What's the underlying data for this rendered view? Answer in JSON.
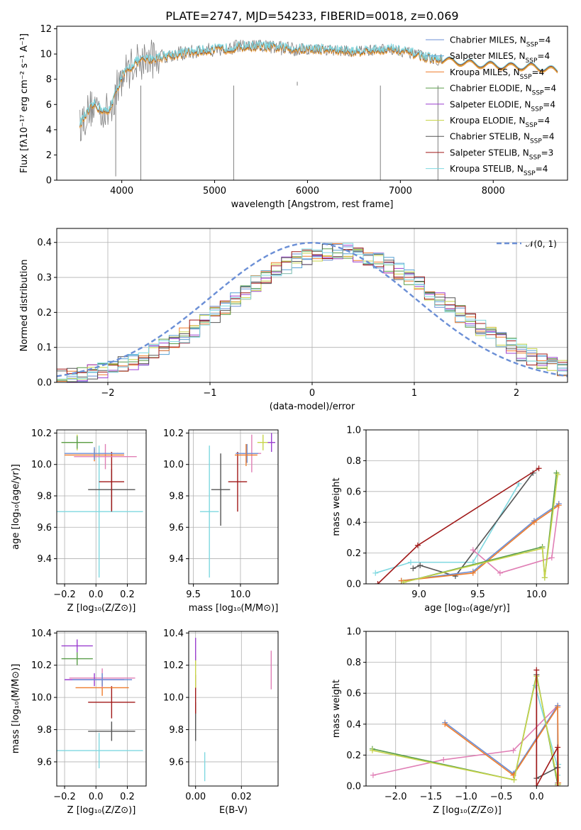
{
  "title": "PLATE=2747, MJD=54233, FIBERID=0018, z=0.069",
  "colors": {
    "chabrier_miles": "#6b8fd6",
    "salpeter_miles": "#56a0d3",
    "kroupa_miles": "#ef7d2d",
    "chabrier_elodie": "#5a9e4a",
    "salpeter_elodie": "#9b3fd0",
    "kroupa_elodie": "#c8d44a",
    "chabrier_stelib": "#555555",
    "salpeter_stelib": "#a01818",
    "kroupa_stelib": "#7fd8e0",
    "pink": "#e07fb5",
    "data": "#808080",
    "normal": "#6b8fd6"
  },
  "chart_data": [
    {
      "id": "spectrum",
      "type": "line",
      "xlabel": "wavelength [Angstrom, rest frame]",
      "ylabel": "Flux [fλ10⁻¹⁷ erg cm⁻² s⁻¹ A⁻¹]",
      "xlim": [
        3300,
        8800
      ],
      "ylim": [
        0,
        12.2
      ],
      "xticks": [
        "4000",
        "5000",
        "6000",
        "7000",
        "8000"
      ],
      "yticks": [
        "0",
        "2",
        "4",
        "6",
        "8",
        "10",
        "12"
      ],
      "legend_position": "right",
      "legend": [
        {
          "label": "Chabrier MILES, N",
          "sub": "SSP",
          "tail": "=4",
          "color": "chabrier_miles"
        },
        {
          "label": "Salpeter MILES, N",
          "sub": "SSP",
          "tail": "=4",
          "color": "salpeter_miles"
        },
        {
          "label": "Kroupa MILES, N",
          "sub": "SSP",
          "tail": "=4",
          "color": "kroupa_miles"
        },
        {
          "label": "Chabrier ELODIE, N",
          "sub": "SSP",
          "tail": "=4",
          "color": "chabrier_elodie"
        },
        {
          "label": "Salpeter ELODIE, N",
          "sub": "SSP",
          "tail": "=4",
          "color": "salpeter_elodie"
        },
        {
          "label": "Kroupa ELODIE, N",
          "sub": "SSP",
          "tail": "=4",
          "color": "kroupa_elodie"
        },
        {
          "label": "Chabrier STELIB, N",
          "sub": "SSP",
          "tail": "=4",
          "color": "chabrier_stelib"
        },
        {
          "label": "Salpeter STELIB, N",
          "sub": "SSP",
          "tail": "=3",
          "color": "salpeter_stelib"
        },
        {
          "label": "Kroupa STELIB, N",
          "sub": "SSP",
          "tail": "=4",
          "color": "kroupa_stelib"
        }
      ],
      "continuum": {
        "x": [
          3550,
          3700,
          3850,
          4000,
          4150,
          4300,
          4500,
          4700,
          4900,
          5100,
          5300,
          5500,
          5700,
          5900,
          6100,
          6300,
          6500,
          6700,
          6900,
          7100,
          7300,
          7450
        ],
        "y": [
          4.5,
          6.0,
          5.3,
          8.2,
          9.4,
          9.6,
          9.9,
          10.1,
          10.3,
          10.4,
          10.6,
          10.6,
          10.5,
          10.4,
          10.4,
          10.3,
          10.2,
          10.3,
          10.4,
          10.1,
          9.7,
          9.5
        ]
      },
      "continuum_red": {
        "x": [
          7450,
          7600,
          7800,
          8000,
          8200,
          8400,
          8600,
          8700
        ],
        "y": [
          9.5,
          9.4,
          9.2,
          9.1,
          9.0,
          9.0,
          8.8,
          8.6
        ]
      },
      "absorption_lines": [
        {
          "x": 3935,
          "y": 0.3
        },
        {
          "x": 4205,
          "y": 0.0
        },
        {
          "x": 5205,
          "y": 0.0
        },
        {
          "x": 5890,
          "y": 7.8
        },
        {
          "x": 6785,
          "y": 0.0
        },
        {
          "x": 7405,
          "y": 0.0
        }
      ]
    },
    {
      "id": "residuals",
      "type": "line",
      "xlabel": "(data-model)/error",
      "ylabel": "Normed distribution",
      "xlim": [
        -2.5,
        2.5
      ],
      "ylim": [
        0,
        0.44
      ],
      "xticks": [
        "−2",
        "−1",
        "0",
        "1",
        "2"
      ],
      "yticks": [
        "0.0",
        "0.1",
        "0.2",
        "0.3",
        "0.4"
      ],
      "grid": true,
      "legend_position": "top-right",
      "normal_label": "𝒩(0, 1)",
      "bin_width": 0.1
    },
    {
      "id": "age_vs_Z",
      "type": "scatter",
      "xlabel": "Z [log₁₀(Z/Z⊙)]",
      "ylabel": "age  [log₁₀(age/yr)]",
      "xlim": [
        -0.25,
        0.32
      ],
      "ylim": [
        9.24,
        10.22
      ],
      "xticks": [
        "−0.2",
        "0.0",
        "0.2"
      ],
      "yticks": [
        "9.4",
        "9.6",
        "9.8",
        "10.0",
        "10.2"
      ],
      "grid": true,
      "points": [
        {
          "x": 0.02,
          "y": 9.7,
          "xerr": 0.28,
          "yerr": 0.42,
          "color": "kroupa_stelib"
        },
        {
          "x": 0.1,
          "y": 9.84,
          "xerr": 0.15,
          "yerr": 0.13,
          "color": "chabrier_stelib"
        },
        {
          "x": 0.1,
          "y": 9.89,
          "xerr": 0.08,
          "yerr": 0.19,
          "color": "salpeter_stelib"
        },
        {
          "x": 0.06,
          "y": 10.05,
          "xerr": 0.2,
          "yerr": 0.08,
          "color": "pink"
        },
        {
          "x": -0.01,
          "y": 10.06,
          "xerr": 0.19,
          "yerr": 0.04,
          "color": "kroupa_miles"
        },
        {
          "x": -0.01,
          "y": 10.07,
          "xerr": 0.19,
          "yerr": 0.04,
          "color": "chabrier_miles"
        },
        {
          "x": -0.12,
          "y": 10.14,
          "xerr": 0.1,
          "yerr": 0.05,
          "color": "kroupa_elodie"
        },
        {
          "x": -0.12,
          "y": 10.14,
          "xerr": 0.1,
          "yerr": 0.04,
          "color": "chabrier_elodie"
        }
      ]
    },
    {
      "id": "age_vs_mass",
      "type": "scatter",
      "xlabel": "mass [log₁₀(M/M⊙)]",
      "ylabel": "",
      "xlim": [
        9.45,
        10.4
      ],
      "ylim": [
        9.24,
        10.22
      ],
      "xticks": [
        "9.5",
        "10.0"
      ],
      "yticks": [
        "9.4",
        "9.6",
        "9.8",
        "10.0",
        "10.2"
      ],
      "grid": true,
      "points": [
        {
          "x": 9.67,
          "y": 9.7,
          "xerr": 0.1,
          "yerr": 0.42,
          "color": "kroupa_stelib"
        },
        {
          "x": 9.79,
          "y": 9.84,
          "xerr": 0.1,
          "yerr": 0.23,
          "color": "chabrier_stelib"
        },
        {
          "x": 9.97,
          "y": 9.89,
          "xerr": 0.1,
          "yerr": 0.19,
          "color": "salpeter_stelib"
        },
        {
          "x": 10.12,
          "y": 10.07,
          "xerr": 0.1,
          "yerr": 0.12,
          "color": "pink"
        },
        {
          "x": 10.07,
          "y": 10.07,
          "xerr": 0.12,
          "yerr": 0.06,
          "color": "chabrier_miles"
        },
        {
          "x": 10.06,
          "y": 10.06,
          "xerr": 0.12,
          "yerr": 0.07,
          "color": "kroupa_miles"
        },
        {
          "x": 10.24,
          "y": 10.14,
          "xerr": 0.06,
          "yerr": 0.05,
          "color": "kroupa_elodie"
        },
        {
          "x": 10.33,
          "y": 10.14,
          "xerr": 0.04,
          "yerr": 0.06,
          "color": "salpeter_elodie"
        }
      ]
    },
    {
      "id": "massweight_vs_age",
      "type": "line",
      "xlabel": "age  [log₁₀(age/yr)]",
      "ylabel": "mass weight",
      "xlim": [
        8.55,
        10.27
      ],
      "ylim": [
        0,
        1.0
      ],
      "xticks": [
        "9.0",
        "9.5",
        "10.0"
      ],
      "yticks": [
        "0.0",
        "0.2",
        "0.4",
        "0.6",
        "0.8",
        "1.0"
      ],
      "grid": true,
      "series": [
        {
          "color": "kroupa_stelib",
          "x": [
            8.63,
            8.93,
            9.46,
            9.85
          ],
          "y": [
            0.07,
            0.14,
            0.14,
            0.65
          ]
        },
        {
          "color": "chabrier_stelib",
          "x": [
            8.95,
            9.01,
            9.31,
            9.97
          ],
          "y": [
            0.1,
            0.12,
            0.05,
            0.72
          ]
        },
        {
          "color": "salpeter_stelib",
          "x": [
            8.65,
            8.99,
            10.02
          ],
          "y": [
            0.0,
            0.25,
            0.75
          ]
        },
        {
          "color": "pink",
          "x": [
            9.46,
            9.69,
            10.13,
            10.19
          ],
          "y": [
            0.22,
            0.07,
            0.17,
            0.52
          ]
        },
        {
          "color": "chabrier_miles",
          "x": [
            8.85,
            9.46,
            9.98,
            10.19
          ],
          "y": [
            0.02,
            0.08,
            0.41,
            0.52
          ]
        },
        {
          "color": "kroupa_miles",
          "x": [
            8.85,
            9.46,
            9.98,
            10.19
          ],
          "y": [
            0.02,
            0.07,
            0.4,
            0.51
          ]
        },
        {
          "color": "chabrier_elodie",
          "x": [
            8.87,
            10.05,
            10.07,
            10.17
          ],
          "y": [
            0.01,
            0.24,
            0.04,
            0.72
          ]
        },
        {
          "color": "kroupa_elodie",
          "x": [
            8.87,
            10.05,
            10.07,
            10.18
          ],
          "y": [
            0.01,
            0.23,
            0.04,
            0.71
          ]
        }
      ]
    },
    {
      "id": "mass_vs_Z",
      "type": "scatter",
      "xlabel": "Z [log₁₀(Z/Z⊙)]",
      "ylabel": "mass [log₁₀(M/M⊙)]",
      "xlim": [
        -0.25,
        0.32
      ],
      "ylim": [
        9.45,
        10.41
      ],
      "xticks": [
        "−0.2",
        "0.0",
        "0.2"
      ],
      "yticks": [
        "9.6",
        "9.8",
        "10.0",
        "10.2",
        "10.4"
      ],
      "grid": true,
      "points": [
        {
          "x": 0.02,
          "y": 9.67,
          "xerr": 0.28,
          "yerr": 0.11,
          "color": "kroupa_stelib"
        },
        {
          "x": 0.1,
          "y": 9.79,
          "xerr": 0.15,
          "yerr": 0.06,
          "color": "chabrier_stelib"
        },
        {
          "x": 0.1,
          "y": 9.97,
          "xerr": 0.15,
          "yerr": 0.1,
          "color": "salpeter_stelib"
        },
        {
          "x": 0.04,
          "y": 10.06,
          "xerr": 0.17,
          "yerr": 0.05,
          "color": "kroupa_miles"
        },
        {
          "x": 0.04,
          "y": 10.12,
          "xerr": 0.21,
          "yerr": 0.06,
          "color": "pink"
        },
        {
          "x": -0.01,
          "y": 10.11,
          "xerr": 0.19,
          "yerr": 0.04,
          "color": "salpeter_elodie"
        },
        {
          "x": -0.12,
          "y": 10.24,
          "xerr": 0.1,
          "yerr": 0.04,
          "color": "chabrier_elodie"
        },
        {
          "x": -0.12,
          "y": 10.32,
          "xerr": 0.1,
          "yerr": 0.04,
          "color": "salpeter_elodie"
        },
        {
          "x": 0.04,
          "y": 10.11,
          "xerr": 0.19,
          "yerr": 0.04,
          "color": "chabrier_miles"
        }
      ]
    },
    {
      "id": "mass_vs_ebv",
      "type": "scatter",
      "xlabel": "E(B-V)",
      "ylabel": "",
      "xlim": [
        -0.003,
        0.036
      ],
      "ylim": [
        9.45,
        10.41
      ],
      "xticks": [
        "0.00",
        "0.02"
      ],
      "yticks": [
        "9.6",
        "9.8",
        "10.0",
        "10.2",
        "10.4"
      ],
      "grid": true,
      "points": [
        {
          "x": 0.004,
          "y": 9.57,
          "xerr": 0,
          "yerr": 0.09,
          "color": "kroupa_stelib"
        },
        {
          "x": 0.0,
          "y": 9.85,
          "xerr": 0,
          "yerr": 0.12,
          "color": "chabrier_stelib"
        },
        {
          "x": 0.0,
          "y": 10.02,
          "xerr": 0,
          "yerr": 0.12,
          "color": "salpeter_stelib"
        },
        {
          "x": 0.033,
          "y": 10.17,
          "xerr": 0,
          "yerr": 0.12,
          "color": "pink"
        },
        {
          "x": 0.0,
          "y": 10.16,
          "xerr": 0,
          "yerr": 0.1,
          "color": "kroupa_elodie"
        },
        {
          "x": 0.0,
          "y": 10.3,
          "xerr": 0,
          "yerr": 0.07,
          "color": "salpeter_elodie"
        }
      ]
    },
    {
      "id": "massweight_vs_Z",
      "type": "line",
      "xlabel": "Z [log₁₀(Z/Z⊙)]",
      "ylabel": "mass weight",
      "xlim": [
        -2.42,
        0.45
      ],
      "ylim": [
        0,
        1.0
      ],
      "xticks": [
        "−2.0",
        "−1.5",
        "−1.0",
        "−0.5",
        "0.0"
      ],
      "yticks": [
        "0.0",
        "0.2",
        "0.4",
        "0.6",
        "0.8",
        "1.0"
      ],
      "grid": true,
      "series": [
        {
          "color": "kroupa_stelib",
          "x": [
            -0.02,
            0.3,
            0.31,
            0.3
          ],
          "y": [
            0.65,
            0.12,
            0.14,
            0.07
          ]
        },
        {
          "color": "pink",
          "x": [
            -2.32,
            -1.32,
            -0.33,
            0.3
          ],
          "y": [
            0.07,
            0.17,
            0.23,
            0.52
          ]
        },
        {
          "color": "chabrier_miles",
          "x": [
            -1.3,
            -0.33,
            0.3,
            0.3
          ],
          "y": [
            0.41,
            0.08,
            0.52,
            0.02
          ]
        },
        {
          "color": "kroupa_miles",
          "x": [
            -1.3,
            -0.33,
            0.3,
            0.31
          ],
          "y": [
            0.4,
            0.07,
            0.51,
            0.02
          ]
        },
        {
          "color": "chabrier_elodie",
          "x": [
            -2.33,
            -0.32,
            0.0,
            0.3
          ],
          "y": [
            0.24,
            0.04,
            0.72,
            0.01
          ]
        },
        {
          "color": "kroupa_elodie",
          "x": [
            -2.33,
            -0.32,
            0.0,
            0.31
          ],
          "y": [
            0.23,
            0.04,
            0.71,
            0.01
          ]
        },
        {
          "color": "chabrier_stelib",
          "x": [
            0.0,
            0.0,
            0.3
          ],
          "y": [
            0.72,
            0.05,
            0.12
          ]
        },
        {
          "color": "salpeter_stelib",
          "x": [
            0.0,
            0.0,
            0.3,
            0.3
          ],
          "y": [
            0.75,
            0.0,
            0.25,
            0.0
          ]
        }
      ]
    }
  ]
}
